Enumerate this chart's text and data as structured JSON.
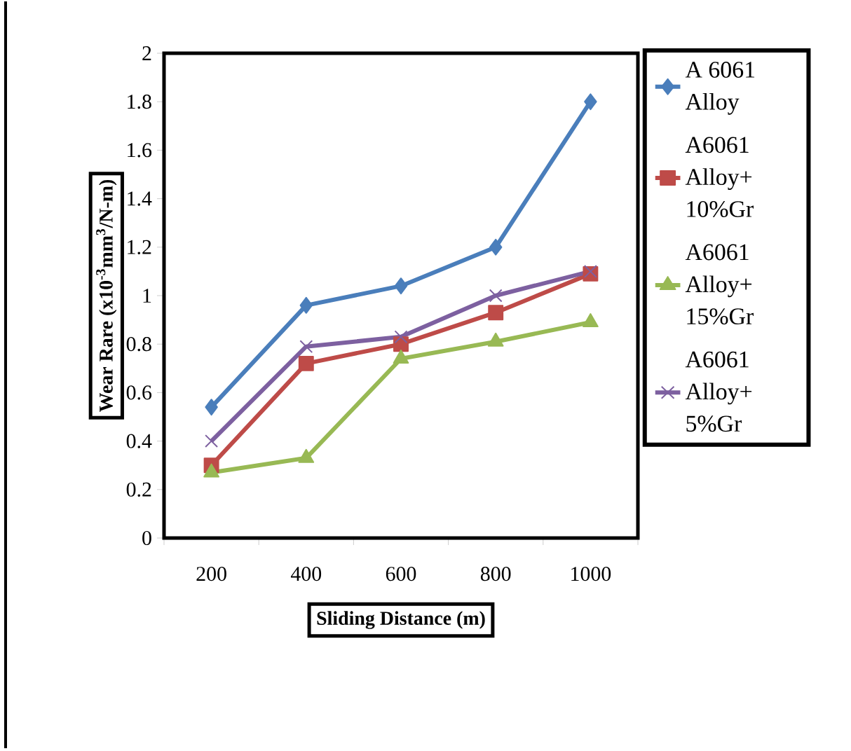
{
  "chart_data": {
    "type": "line",
    "xlabel": "Sliding Distance (m)",
    "ylabel": "Wear Rare (x10$^{-3}$mm$^{3}$/N-m)",
    "categories": [
      "200",
      "400",
      "600",
      "800",
      "1000"
    ],
    "ylim": [
      0,
      2
    ],
    "yticks": [
      0,
      0.2,
      0.4,
      0.6,
      0.8,
      1,
      1.2,
      1.4,
      1.6,
      1.8,
      2
    ],
    "legend": "right",
    "grid": false,
    "series": [
      {
        "name": "A 6061 Alloy",
        "color": "#4a7ebb",
        "marker": "diamond",
        "values": [
          0.54,
          0.96,
          1.04,
          1.2,
          1.8
        ]
      },
      {
        "name": "A6061 Alloy+ 10%Gr",
        "color": "#be4b48",
        "marker": "square",
        "values": [
          0.3,
          0.72,
          0.8,
          0.93,
          1.09
        ]
      },
      {
        "name": "A6061 Alloy+ 15%Gr",
        "color": "#98b954",
        "marker": "triangle",
        "values": [
          0.27,
          0.33,
          0.74,
          0.81,
          0.89
        ]
      },
      {
        "name": "A6061 Alloy+ 5%Gr",
        "color": "#7d60a0",
        "marker": "cross",
        "values": [
          0.4,
          0.79,
          0.83,
          1.0,
          1.1
        ]
      }
    ]
  }
}
